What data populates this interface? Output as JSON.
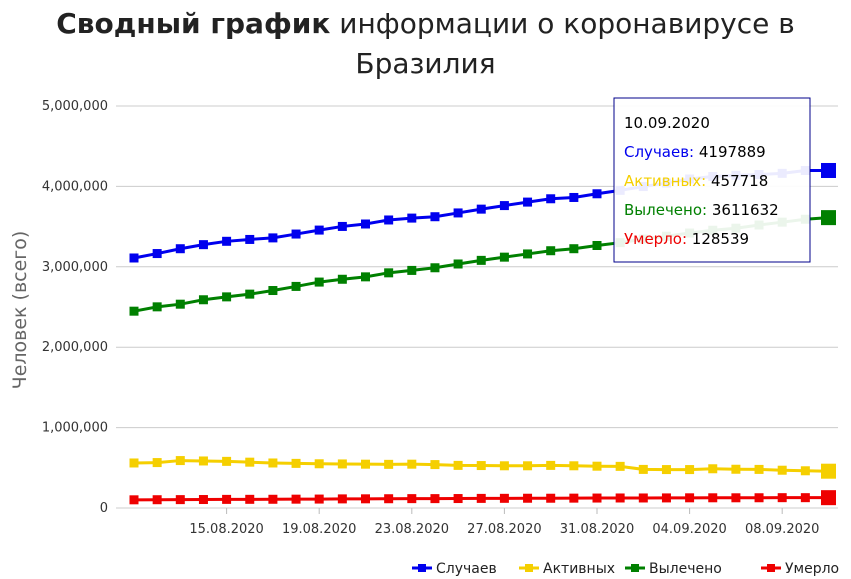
{
  "title": {
    "bold": "Сводный график",
    "line1_rest": "информации о коронавирусе в",
    "line2": "Бразилия"
  },
  "chart_data": {
    "type": "line",
    "title": "Сводный график информации о коронавирусе в Бразилия",
    "ylabel": "Человек (всего)",
    "xlabel": "",
    "ylim": [
      0,
      5000000
    ],
    "yticks": [
      0,
      1000000,
      2000000,
      3000000,
      4000000,
      5000000
    ],
    "ytick_labels": [
      "0",
      "1,000,000",
      "2,000,000",
      "3,000,000",
      "4,000,000",
      "5,000,000"
    ],
    "x": [
      "11.08.2020",
      "12.08.2020",
      "13.08.2020",
      "14.08.2020",
      "15.08.2020",
      "16.08.2020",
      "17.08.2020",
      "18.08.2020",
      "19.08.2020",
      "20.08.2020",
      "21.08.2020",
      "22.08.2020",
      "23.08.2020",
      "24.08.2020",
      "25.08.2020",
      "26.08.2020",
      "27.08.2020",
      "28.08.2020",
      "29.08.2020",
      "30.08.2020",
      "31.08.2020",
      "01.09.2020",
      "02.09.2020",
      "03.09.2020",
      "04.09.2020",
      "05.09.2020",
      "06.09.2020",
      "07.09.2020",
      "08.09.2020",
      "09.09.2020",
      "10.09.2020"
    ],
    "xtick_labels": [
      "15.08.2020",
      "19.08.2020",
      "23.08.2020",
      "27.08.2020",
      "31.08.2020",
      "04.09.2020",
      "08.09.2020"
    ],
    "grid": true,
    "legend_position": "bottom-right",
    "series": [
      {
        "name": "Случаев",
        "color": "#0000ee",
        "values": [
          3109630,
          3164785,
          3224876,
          3275520,
          3317096,
          3340197,
          3359570,
          3407354,
          3456652,
          3501975,
          3532330,
          3582362,
          3605783,
          3622861,
          3669995,
          3717156,
          3761391,
          3804803,
          3846153,
          3862311,
          3908272,
          3950931,
          3997865,
          4041638,
          4091801,
          4123000,
          4137521,
          4147794,
          4162073,
          4197889,
          4197889
        ]
      },
      {
        "name": "Активных",
        "color": "#f5cf00",
        "values": [
          560000,
          565000,
          590000,
          585000,
          580000,
          570000,
          560000,
          555000,
          550000,
          548000,
          545000,
          543000,
          545000,
          540000,
          530000,
          528000,
          525000,
          525000,
          530000,
          525000,
          520000,
          518000,
          480000,
          478000,
          478000,
          488000,
          482000,
          480000,
          470000,
          463000,
          457718
        ]
      },
      {
        "name": "Вылечено",
        "color": "#008000",
        "values": [
          2448000,
          2502000,
          2535000,
          2590000,
          2626000,
          2660000,
          2705000,
          2756000,
          2810000,
          2845000,
          2875000,
          2925000,
          2955000,
          2988000,
          3035000,
          3080000,
          3120000,
          3160000,
          3200000,
          3225000,
          3265000,
          3300000,
          3345000,
          3380000,
          3420000,
          3455000,
          3480000,
          3520000,
          3555000,
          3591000,
          3611632
        ]
      },
      {
        "name": "Умерло",
        "color": "#ee0000",
        "values": [
          101752,
          103026,
          104201,
          105463,
          107232,
          107852,
          108536,
          109888,
          111100,
          113358,
          114250,
          115309,
          116580,
          116666,
          117665,
          119504,
          120262,
          121381,
          121515,
          122596,
          123780,
          124614,
          124729,
          125502,
          126650,
          126960,
          127001,
          127464,
          128539,
          128539,
          128539
        ]
      }
    ]
  },
  "tooltip": {
    "date": "10.09.2020",
    "rows": [
      {
        "label": "Случаев:",
        "value": "4197889",
        "color": "#0000ee"
      },
      {
        "label": "Активных:",
        "value": "457718",
        "color": "#f5cf00"
      },
      {
        "label": "Вылечено:",
        "value": "3611632",
        "color": "#008000"
      },
      {
        "label": "Умерло:",
        "value": "128539",
        "color": "#ee0000"
      }
    ]
  },
  "legend": [
    {
      "label": "Случаев",
      "color": "#0000ee"
    },
    {
      "label": "Активных",
      "color": "#f5cf00"
    },
    {
      "label": "Вылечено",
      "color": "#008000"
    },
    {
      "label": "Умерло",
      "color": "#ee0000"
    }
  ]
}
